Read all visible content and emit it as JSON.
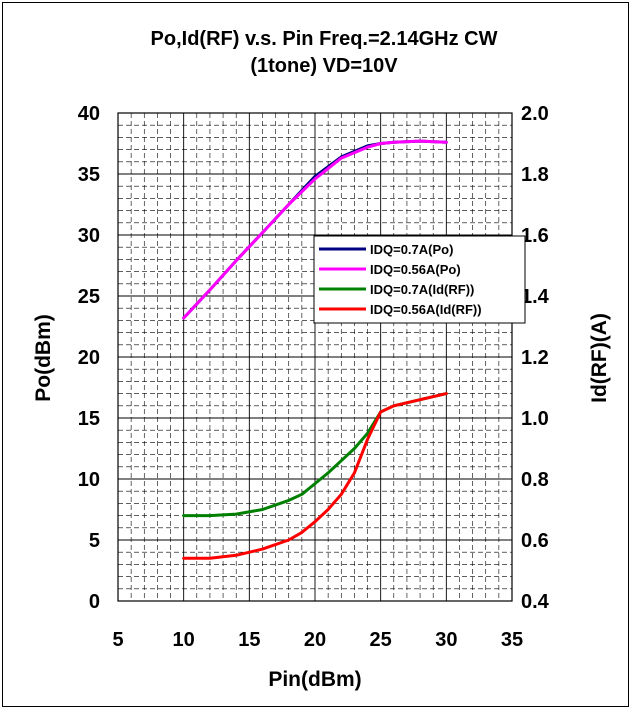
{
  "chart_data": {
    "type": "line",
    "title_line1": "Po,Id(RF)  v.s.  Pin    Freq.=2.14GHz  CW",
    "title_line2": "(1tone)  VD=10V",
    "xlabel": "Pin(dBm)",
    "ylabel_left": "Po(dBm)",
    "ylabel_right": "Id(RF)(A)",
    "xlim": [
      5,
      35
    ],
    "ylim_left": [
      0,
      40
    ],
    "ylim_right": [
      0.4,
      2.0
    ],
    "x_ticks": [
      "5",
      "10",
      "15",
      "20",
      "25",
      "30",
      "35"
    ],
    "y_left_ticks": [
      "0",
      "5",
      "10",
      "15",
      "20",
      "25",
      "30",
      "35",
      "40"
    ],
    "y_right_ticks": [
      "0.4",
      "0.6",
      "0.8",
      "1.0",
      "1.2",
      "1.4",
      "1.6",
      "1.8",
      "2.0"
    ],
    "grid": true,
    "legend_position": "center-right",
    "series": [
      {
        "name": "IDQ=0.7A(Po)",
        "axis": "left",
        "color": "#000080",
        "x": [
          10,
          12,
          14,
          16,
          18,
          20,
          22,
          24,
          25,
          26,
          28,
          30
        ],
        "y": [
          23.2,
          25.5,
          27.9,
          30.2,
          32.5,
          34.8,
          36.4,
          37.3,
          37.5,
          37.6,
          37.7,
          37.6
        ]
      },
      {
        "name": "IDQ=0.56A(Po)",
        "axis": "left",
        "color": "#FF00FF",
        "x": [
          10,
          12,
          14,
          16,
          18,
          20,
          22,
          24,
          25,
          26,
          28,
          30
        ],
        "y": [
          23.2,
          25.5,
          27.9,
          30.2,
          32.5,
          34.6,
          36.3,
          37.2,
          37.5,
          37.6,
          37.7,
          37.6
        ]
      },
      {
        "name": "IDQ=0.7A(Id(RF))",
        "axis": "right",
        "color": "#008000",
        "x": [
          10,
          12,
          14,
          16,
          18,
          19,
          20,
          21,
          22,
          23,
          24,
          25,
          26,
          28,
          30
        ],
        "y": [
          0.68,
          0.68,
          0.685,
          0.7,
          0.73,
          0.75,
          0.785,
          0.82,
          0.86,
          0.9,
          0.95,
          1.02,
          1.04,
          1.06,
          1.08
        ]
      },
      {
        "name": "IDQ=0.56A(Id(RF))",
        "axis": "right",
        "color": "#FF0000",
        "x": [
          10,
          12,
          14,
          16,
          18,
          19,
          20,
          21,
          22,
          23,
          24,
          25,
          26,
          28,
          30
        ],
        "y": [
          0.54,
          0.54,
          0.55,
          0.57,
          0.6,
          0.625,
          0.66,
          0.7,
          0.75,
          0.82,
          0.93,
          1.02,
          1.04,
          1.06,
          1.08
        ]
      }
    ]
  }
}
